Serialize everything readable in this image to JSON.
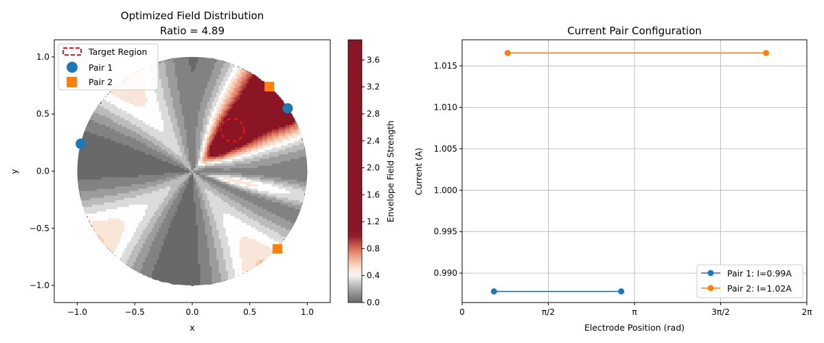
{
  "chart_data": [
    {
      "type": "heatmap",
      "title": "Optimized Field Distribution",
      "subtitle": "Ratio = 4.89",
      "xlabel": "x",
      "ylabel": "y",
      "xlim": [
        -1.2,
        1.2
      ],
      "ylim": [
        -1.15,
        1.15
      ],
      "xticks": [
        -1.0,
        -0.5,
        0.0,
        0.5,
        1.0
      ],
      "xtick_labels": [
        "−1.0",
        "−0.5",
        "0.0",
        "0.5",
        "1.0"
      ],
      "yticks": [
        -1.0,
        -0.5,
        0.0,
        0.5,
        1.0
      ],
      "ytick_labels": [
        "−1.0",
        "−0.5",
        "0.0",
        "0.5",
        "1.0"
      ],
      "domain": {
        "shape": "disk",
        "center": [
          0,
          0
        ],
        "radius": 1.0
      },
      "target_region": {
        "label": "Target Region",
        "center": [
          0.35,
          0.36
        ],
        "radius": 0.1,
        "color": "#e31a1c"
      },
      "electrodes": [
        {
          "name": "Pair 1",
          "marker": "circle",
          "color": "#1f77b4",
          "points": [
            [
              -0.97,
              0.24
            ],
            [
              0.83,
              0.55
            ]
          ]
        },
        {
          "name": "Pair 2",
          "marker": "square",
          "color": "#ff7f0e",
          "points": [
            [
              0.67,
              0.74
            ],
            [
              0.74,
              -0.68
            ]
          ]
        }
      ],
      "colorbar": {
        "label": "Envelope Field Strength",
        "range": [
          0.0,
          3.9
        ],
        "ticks": [
          0.0,
          0.4,
          0.8,
          1.2,
          1.6,
          2.0,
          2.4,
          2.8,
          3.2,
          3.6
        ],
        "tick_labels": [
          "0.0",
          "0.4",
          "0.8",
          "1.2",
          "1.6",
          "2.0",
          "2.4",
          "2.8",
          "3.2",
          "3.6"
        ],
        "colormap": "grey-white-red, saturating above 1.0"
      },
      "legend": {
        "location": "upper left",
        "entries": [
          "Target Region",
          "Pair 1",
          "Pair 2"
        ]
      }
    },
    {
      "type": "line",
      "title": "Current Pair Configuration",
      "xlabel": "Electrode Position (rad)",
      "ylabel": "Current (A)",
      "xlim": [
        0,
        6.2832
      ],
      "ylim": [
        0.98645,
        1.01815
      ],
      "xticks": [
        0,
        1.5708,
        3.1416,
        4.7124,
        6.2832
      ],
      "xtick_labels": [
        "0",
        "π/2",
        "π",
        "3π/2",
        "2π"
      ],
      "yticks": [
        0.99,
        0.995,
        1.0,
        1.005,
        1.01,
        1.015
      ],
      "ytick_labels": [
        "0.990",
        "0.995",
        "1.000",
        "1.005",
        "1.010",
        "1.015"
      ],
      "grid": true,
      "legend": {
        "location": "lower right"
      },
      "series": [
        {
          "name": "Pair 1: I=0.99A",
          "color": "#1f77b4",
          "x": [
            0.58,
            2.9
          ],
          "y": [
            0.98779,
            0.98779
          ]
        },
        {
          "name": "Pair 2: I=1.02A",
          "color": "#ff7f0e",
          "x": [
            0.83,
            5.54
          ],
          "y": [
            1.01656,
            1.01656
          ]
        }
      ]
    }
  ]
}
